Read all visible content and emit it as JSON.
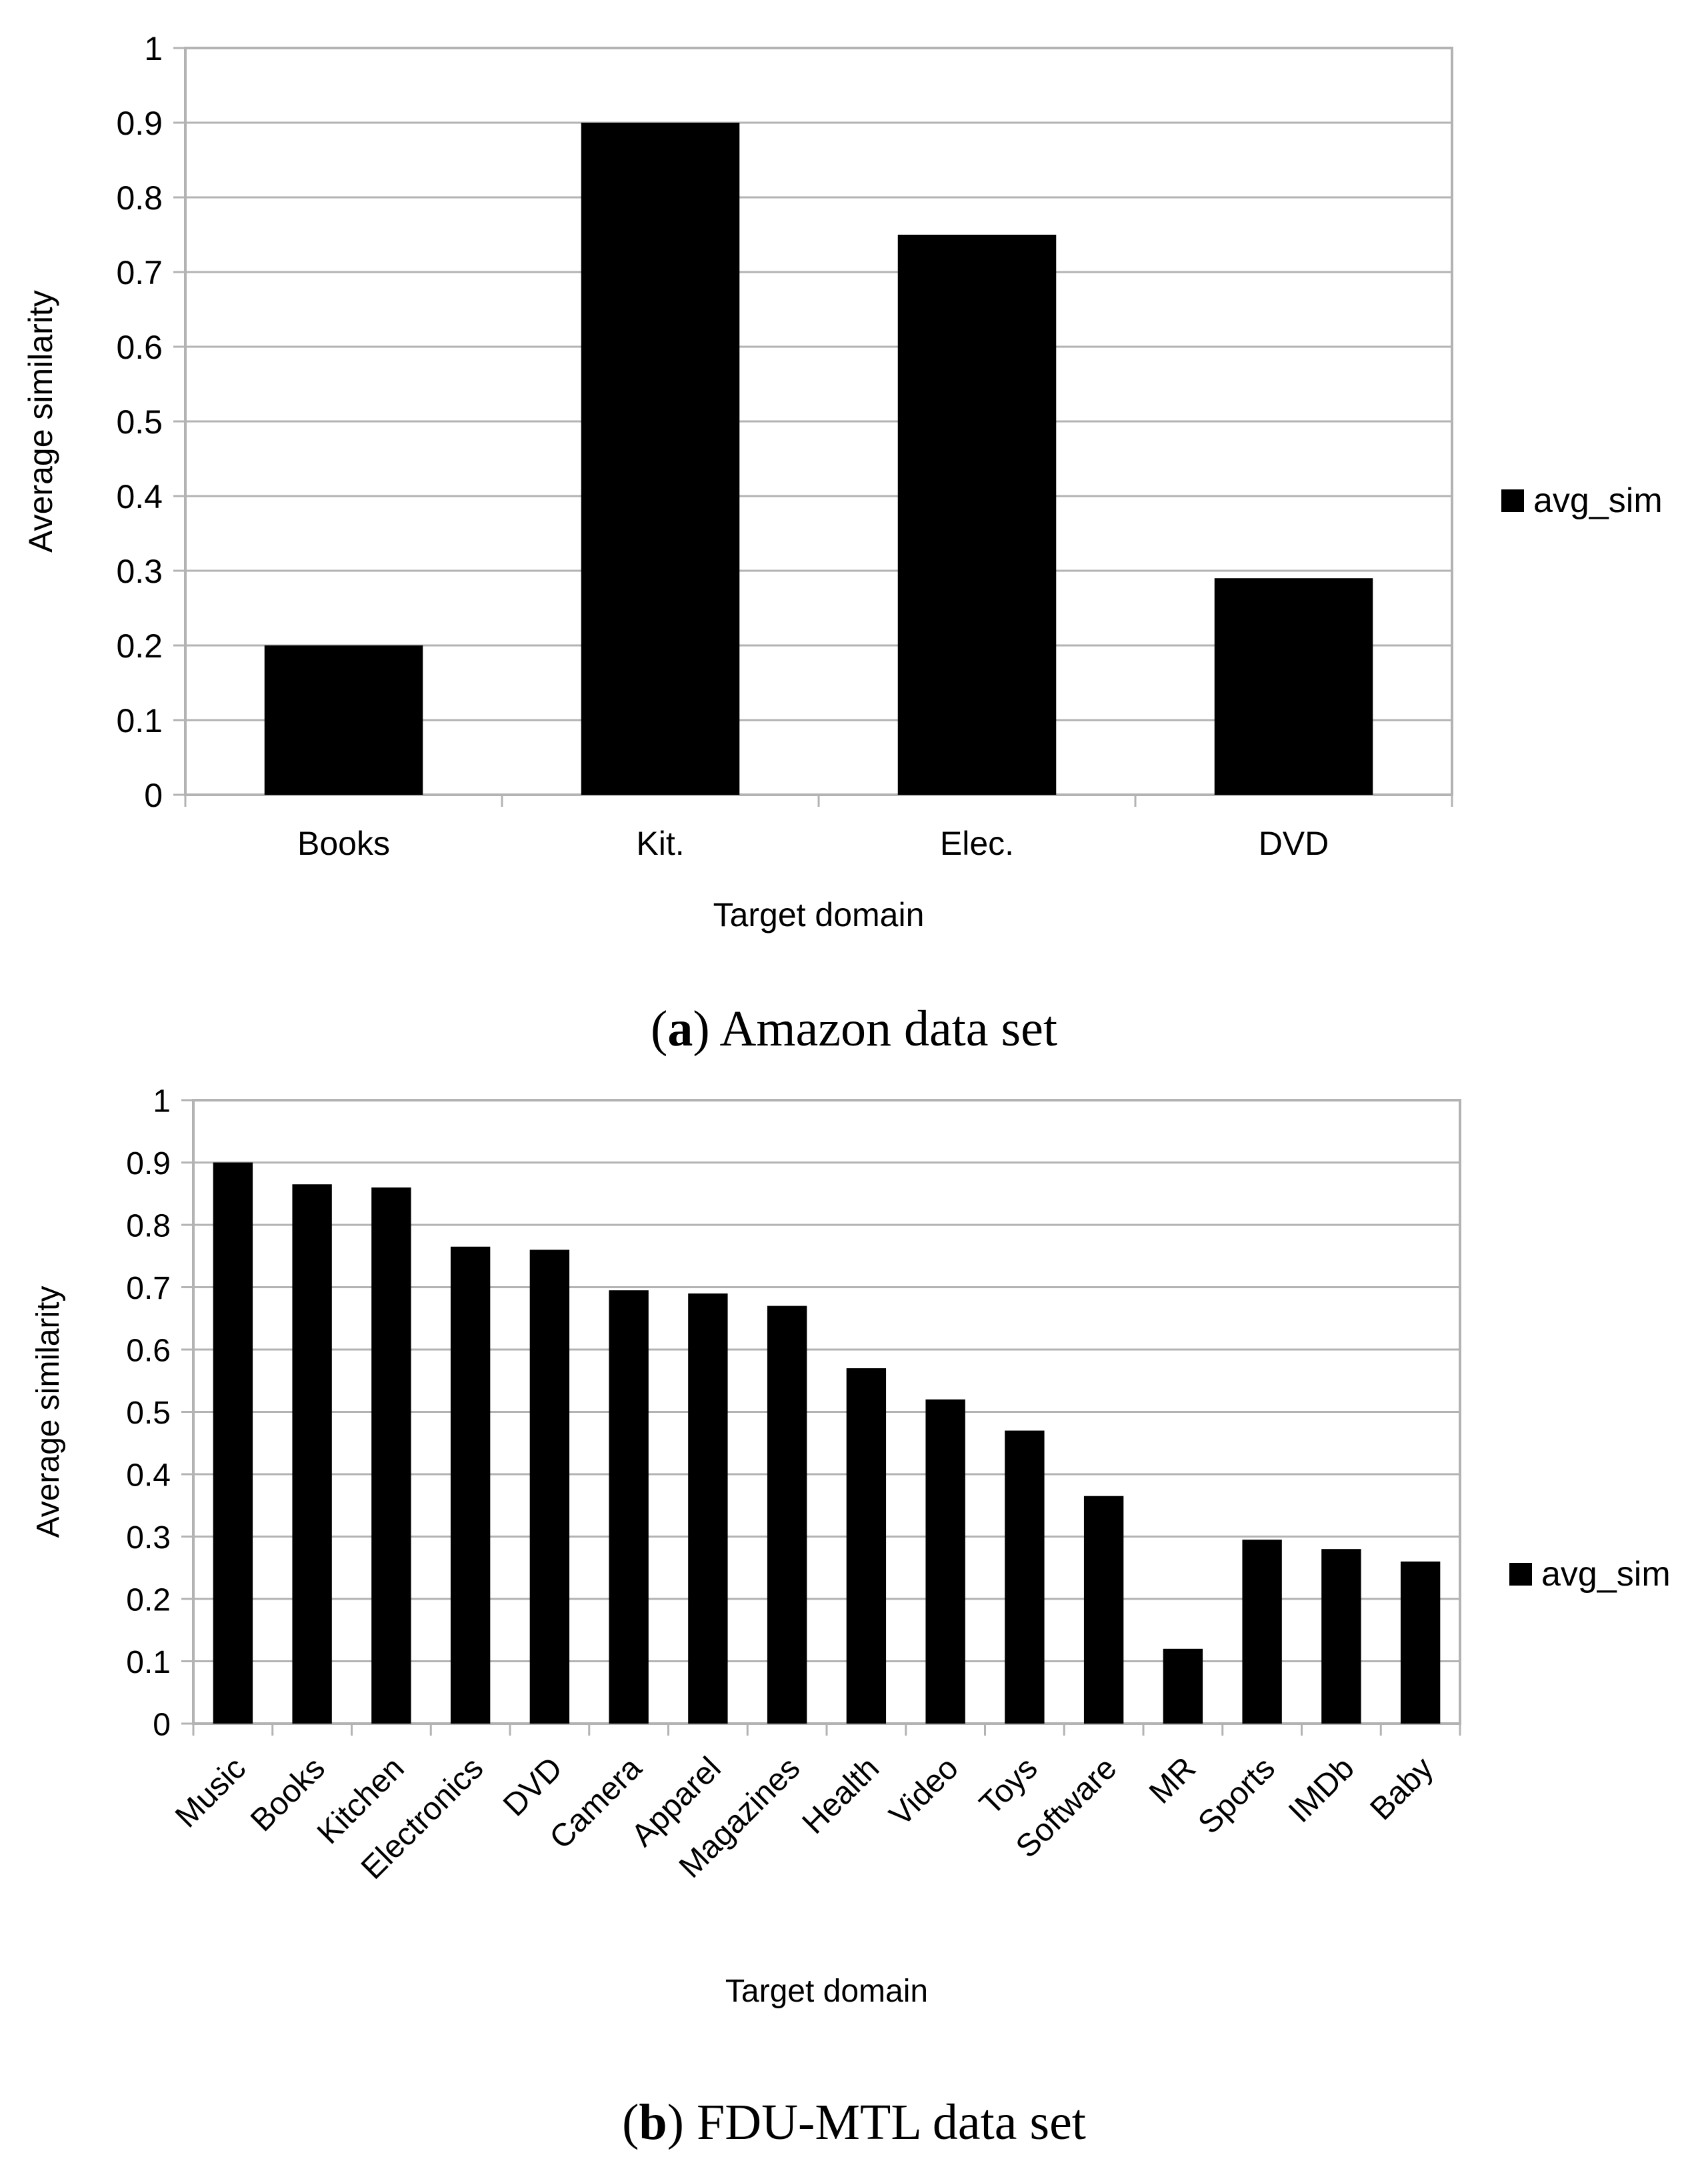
{
  "chart_data": [
    {
      "type": "bar",
      "panel_letter": "a",
      "caption": "Amazon data set",
      "title": "",
      "xlabel": "Target domain",
      "ylabel": "Average similarity",
      "ylim": [
        0,
        1
      ],
      "yticks": [
        "0",
        "0.1",
        "0.2",
        "0.3",
        "0.4",
        "0.5",
        "0.6",
        "0.7",
        "0.8",
        "0.9",
        "1"
      ],
      "grid": true,
      "legend_position": "right",
      "categories": [
        "Books",
        "Kit.",
        "Elec.",
        "DVD"
      ],
      "series": [
        {
          "name": "avg_sim",
          "color": "#000000",
          "values": [
            0.2,
            0.9,
            0.75,
            0.29
          ]
        }
      ]
    },
    {
      "type": "bar",
      "panel_letter": "b",
      "caption": "FDU-MTL data set",
      "title": "",
      "xlabel": "Target domain",
      "ylabel": "Average similarity",
      "ylim": [
        0,
        1
      ],
      "yticks": [
        "0",
        "0.1",
        "0.2",
        "0.3",
        "0.4",
        "0.5",
        "0.6",
        "0.7",
        "0.8",
        "0.9",
        "1"
      ],
      "grid": true,
      "legend_position": "right",
      "categories": [
        "Music",
        "Books",
        "Kitchen",
        "Electronics",
        "DVD",
        "Camera",
        "Apparel",
        "Magazines",
        "Health",
        "Video",
        "Toys",
        "Software",
        "MR",
        "Sports",
        "IMDb",
        "Baby"
      ],
      "series": [
        {
          "name": "avg_sim",
          "color": "#000000",
          "values": [
            0.9,
            0.865,
            0.86,
            0.765,
            0.76,
            0.695,
            0.69,
            0.67,
            0.57,
            0.52,
            0.47,
            0.365,
            0.12,
            0.295,
            0.28,
            0.26
          ]
        }
      ]
    }
  ]
}
